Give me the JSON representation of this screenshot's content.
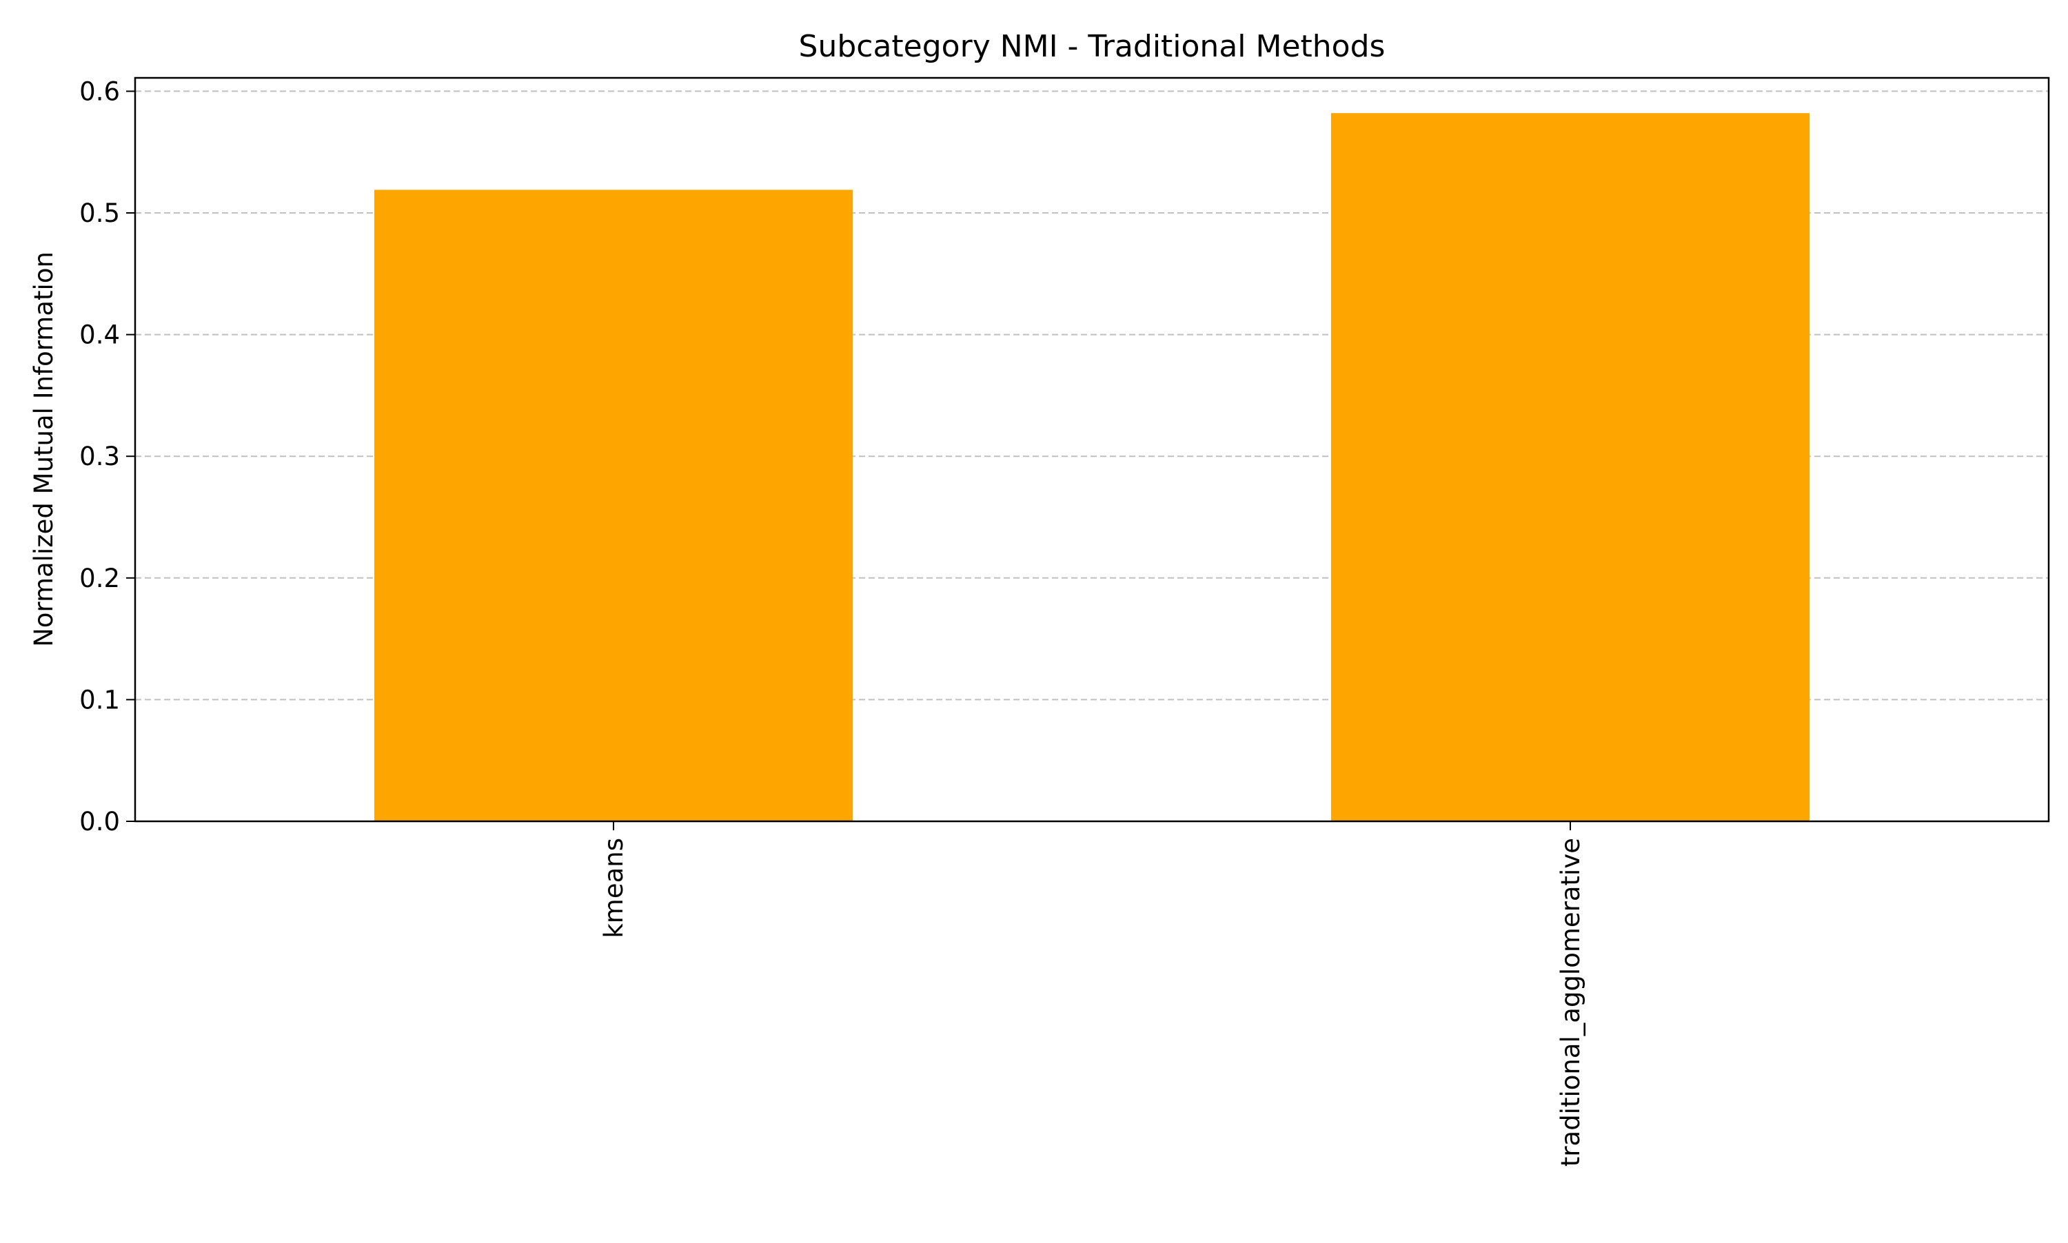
{
  "chart_data": {
    "type": "bar",
    "title": "Subcategory NMI - Traditional Methods",
    "xlabel": "",
    "ylabel": "Normalized Mutual Information",
    "categories": [
      "kmeans",
      "traditional_agglomerative"
    ],
    "values": [
      0.519,
      0.582
    ],
    "ylim": [
      0,
      0.611
    ],
    "yticks": [
      0.0,
      0.1,
      0.2,
      0.3,
      0.4,
      0.5,
      0.6
    ],
    "ytick_labels": [
      "0.0",
      "0.1",
      "0.2",
      "0.3",
      "0.4",
      "0.5",
      "0.6"
    ],
    "grid": "y-dashed",
    "legend": "none",
    "bar_color": "#FFA500",
    "grid_color": "#c0c0c0"
  }
}
